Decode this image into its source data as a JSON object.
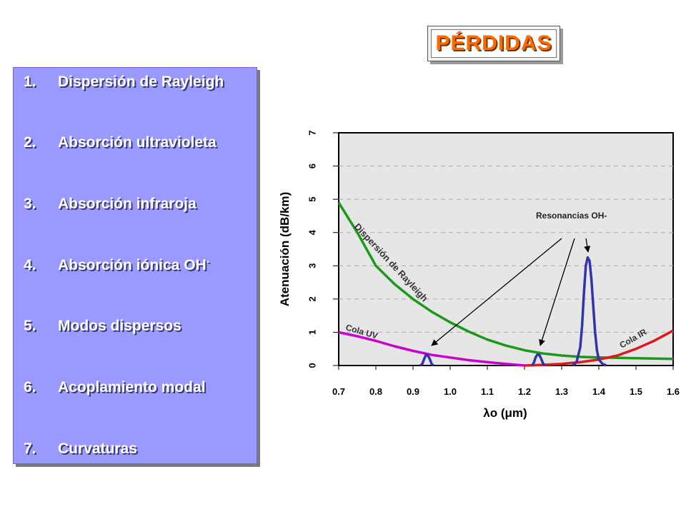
{
  "title": "PÉRDIDAS",
  "list": [
    {
      "num": "1.",
      "text": "Dispersión de Rayleigh",
      "sup": ""
    },
    {
      "num": "2.",
      "text": "Absorción ultravioleta",
      "sup": ""
    },
    {
      "num": "3.",
      "text": "Absorción infraroja",
      "sup": ""
    },
    {
      "num": "4.",
      "text": "Absorción iónica OH",
      "sup": "-"
    },
    {
      "num": "5.",
      "text": "Modos dispersos",
      "sup": ""
    },
    {
      "num": "6.",
      "text": "Acoplamiento modal",
      "sup": ""
    },
    {
      "num": "7.",
      "text": "Curvaturas",
      "sup": ""
    }
  ],
  "chart_data": {
    "type": "line",
    "xlabel": "λo (μm)",
    "ylabel": "Atenuación (dB/km)",
    "xlim": [
      0.7,
      1.6
    ],
    "ylim": [
      0,
      7
    ],
    "x_ticks": [
      "0.7",
      "0.8",
      "0.9",
      "1.0",
      "1.1",
      "1.2",
      "1.3",
      "1.4",
      "1.5",
      "1.6"
    ],
    "y_ticks": [
      "0",
      "1",
      "2",
      "3",
      "4",
      "5",
      "6",
      "7"
    ],
    "grid": true,
    "series": [
      {
        "name": "Dispersión de Rayleigh",
        "color": "#1a9a1a",
        "x": [
          0.7,
          0.75,
          0.8,
          0.85,
          0.9,
          0.95,
          1.0,
          1.05,
          1.1,
          1.15,
          1.2,
          1.25,
          1.3,
          1.35,
          1.4,
          1.5,
          1.6
        ],
        "y": [
          4.9,
          4.0,
          3.0,
          2.45,
          2.0,
          1.62,
          1.3,
          1.02,
          0.78,
          0.6,
          0.46,
          0.36,
          0.3,
          0.26,
          0.24,
          0.22,
          0.2
        ]
      },
      {
        "name": "Cola UV",
        "color": "#cc00cc",
        "x": [
          0.7,
          0.75,
          0.8,
          0.85,
          0.9,
          0.95,
          1.0,
          1.05,
          1.1,
          1.15,
          1.2
        ],
        "y": [
          1.0,
          0.88,
          0.74,
          0.58,
          0.44,
          0.32,
          0.24,
          0.16,
          0.1,
          0.05,
          0.0
        ]
      },
      {
        "name": "Cola IR",
        "color": "#e01a1a",
        "x": [
          1.2,
          1.25,
          1.3,
          1.35,
          1.4,
          1.45,
          1.5,
          1.55,
          1.6
        ],
        "y": [
          0.0,
          0.02,
          0.05,
          0.1,
          0.18,
          0.3,
          0.5,
          0.75,
          1.05
        ]
      },
      {
        "name": "OH",
        "color": "#3333aa",
        "x": [
          0.92,
          0.925,
          0.93,
          0.935,
          0.94,
          0.945,
          0.95,
          0.955,
          1.22,
          1.225,
          1.23,
          1.235,
          1.24,
          1.245,
          1.25,
          1.255,
          1.33,
          1.34,
          1.35,
          1.355,
          1.36,
          1.365,
          1.37,
          1.375,
          1.38,
          1.385,
          1.39,
          1.395,
          1.4,
          1.41,
          1.42
        ],
        "y": [
          0.0,
          0.05,
          0.2,
          0.32,
          0.3,
          0.2,
          0.05,
          0.0,
          0.0,
          0.08,
          0.25,
          0.33,
          0.32,
          0.2,
          0.06,
          0.0,
          0.0,
          0.1,
          0.55,
          1.2,
          2.2,
          3.0,
          3.25,
          3.15,
          2.6,
          1.8,
          1.0,
          0.45,
          0.18,
          0.05,
          0.0
        ]
      }
    ],
    "annotations": [
      "Resonancias OH-",
      "Dispersión de Rayleigh",
      "Cola UV",
      "Cola IR"
    ]
  }
}
